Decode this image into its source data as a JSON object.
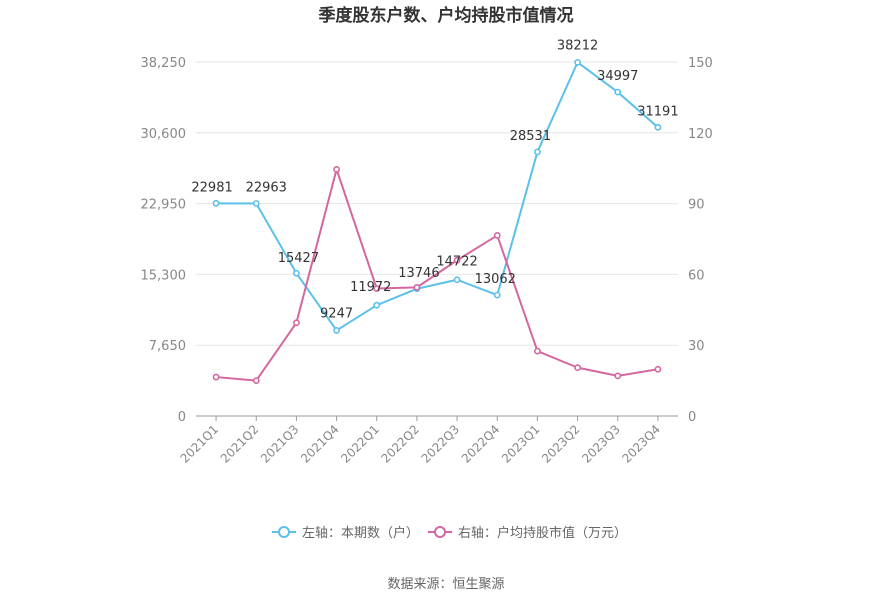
{
  "chart_data": {
    "type": "line",
    "title": "季度股东户数、户均持股市值情况",
    "categories": [
      "2021Q1",
      "2021Q2",
      "2021Q3",
      "2021Q4",
      "2022Q1",
      "2022Q2",
      "2022Q3",
      "2022Q4",
      "2023Q1",
      "2023Q2",
      "2023Q3",
      "2023Q4"
    ],
    "y_left": {
      "ticks": [
        "0",
        "7,650",
        "15,300",
        "22,950",
        "30,600",
        "38,250"
      ],
      "ylim": [
        0,
        38250
      ]
    },
    "y_right": {
      "ticks": [
        "0",
        "30",
        "60",
        "90",
        "120",
        "150"
      ],
      "ylim": [
        0,
        150
      ]
    },
    "grid": true,
    "legend_position": "bottom",
    "series": [
      {
        "name": "左轴：本期数（户）",
        "axis": "left",
        "color": "#5bc0ea",
        "values": [
          22981,
          22963,
          15427,
          9247,
          11972,
          13746,
          14722,
          13062,
          28531,
          38212,
          34997,
          31191
        ],
        "labels": [
          "22981",
          "22963",
          "15427",
          "9247",
          "11972",
          "13746",
          "14722",
          "13062",
          "28531",
          "38212",
          "34997",
          "31191"
        ]
      },
      {
        "name": "右轴：户均持股市值（万元）",
        "axis": "right",
        "color": "#d4679f",
        "values": [
          16.5,
          15.0,
          39.5,
          104.5,
          54.0,
          54.5,
          66.0,
          76.5,
          27.5,
          20.5,
          17.0,
          19.8
        ]
      }
    ]
  },
  "source": "数据来源：恒生聚源"
}
